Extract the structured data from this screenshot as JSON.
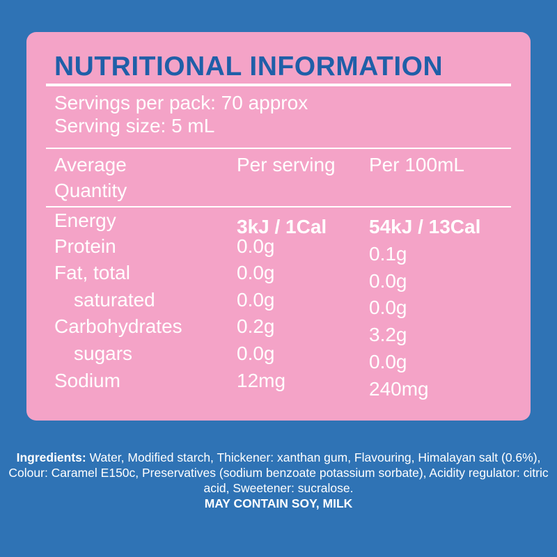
{
  "title": "NUTRITIONAL INFORMATION",
  "servings_per_pack": "Servings per pack:  70 approx",
  "serving_size": "Serving size: 5 mL",
  "header": {
    "col1_line1": "Average",
    "col1_line2": "Quantity",
    "col2": "Per serving",
    "col3": "Per 100mL"
  },
  "rows": [
    {
      "name": "Energy",
      "per_serving": "3kJ / 1Cal",
      "per_100ml": "54kJ / 13Cal"
    },
    {
      "name": "Protein",
      "per_serving": "0.0g",
      "per_100ml": "0.1g"
    },
    {
      "name": "Fat, total",
      "per_serving": "0.0g",
      "per_100ml": "0.0g"
    },
    {
      "name": "saturated",
      "per_serving": "0.0g",
      "per_100ml": "0.0g"
    },
    {
      "name": "Carbohydrates",
      "per_serving": "0.2g",
      "per_100ml": "3.2g"
    },
    {
      "name": "sugars",
      "per_serving": "0.0g",
      "per_100ml": "0.0g"
    },
    {
      "name": "Sodium",
      "per_serving": "12mg",
      "per_100ml": "240mg"
    }
  ],
  "ingredients_label": "Ingredients:",
  "ingredients_text": " Water, Modified starch, Thickener: xanthan gum, Flavouring, Himalayan salt (0.6%), Colour: Caramel E150c, Preservatives (sodium benzoate potassium sorbate), Acidity regulator: citric acid, Sweetener: sucralose.",
  "allergen_warning": "MAY CONTAIN SOY, MILK",
  "colors": {
    "background": "#2f73b5",
    "panel": "#f4a3c7",
    "title": "#1f5fa8",
    "text": "#ffffff"
  }
}
